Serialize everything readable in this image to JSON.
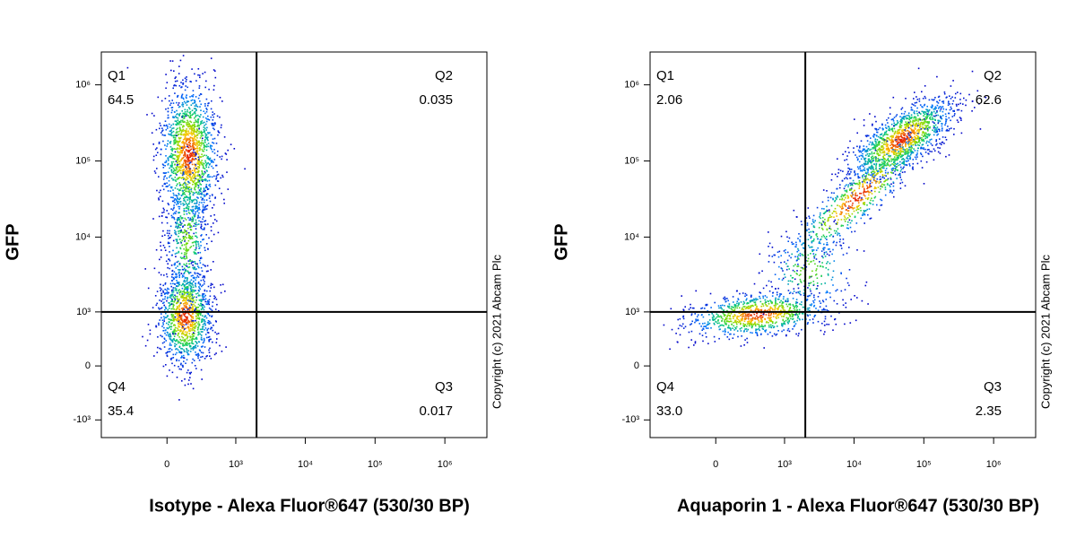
{
  "chart_data": [
    {
      "type": "flow-quadrant",
      "x_label": "Isotype - Alexa Fluor®647 (530/30 BP)",
      "y_label": "GFP",
      "annotation": "Copyright (c) 2021 Abcam Plc",
      "quadrants": [
        {
          "name": "Q1",
          "value": 64.5
        },
        {
          "name": "Q2",
          "value": 0.035
        },
        {
          "name": "Q3",
          "value": 0.017
        },
        {
          "name": "Q4",
          "value": 35.4
        }
      ],
      "x_gate": 2000,
      "y_gate": 1000,
      "xlim": [
        -900,
        4000000
      ],
      "ylim": [
        -1750,
        2700000
      ],
      "xticks": [
        0,
        {
          "value": 1000,
          "label": "10³"
        },
        {
          "value": 10000,
          "label": "10⁴"
        },
        {
          "value": 100000,
          "label": "10⁵"
        },
        {
          "value": 1000000,
          "label": "10⁶"
        }
      ],
      "yticks": [
        {
          "value": -1000,
          "label": "-10³"
        },
        0,
        {
          "value": 1000,
          "label": "10³"
        },
        {
          "value": 10000,
          "label": "10⁴"
        },
        {
          "value": 100000,
          "label": "10⁵"
        },
        {
          "value": 1000000,
          "label": "10⁶"
        }
      ]
    },
    {
      "type": "flow-quadrant",
      "x_label": "Aquaporin 1 - Alexa Fluor®647 (530/30 BP)",
      "y_label": "GFP",
      "annotation": "Copyright (c) 2021 Abcam Plc",
      "quadrants": [
        {
          "name": "Q1",
          "value": 2.06
        },
        {
          "name": "Q2",
          "value": 62.6
        },
        {
          "name": "Q3",
          "value": 2.35
        },
        {
          "name": "Q4",
          "value": 33.0,
          "value_label": "33.0"
        }
      ],
      "x_gate": 2000,
      "y_gate": 1000,
      "xlim": [
        -900,
        4000000
      ],
      "ylim": [
        -1750,
        2700000
      ],
      "xticks": [
        0,
        {
          "value": 1000,
          "label": "10³"
        },
        {
          "value": 10000,
          "label": "10⁴"
        },
        {
          "value": 100000,
          "label": "10⁵"
        },
        {
          "value": 1000000,
          "label": "10⁶"
        }
      ],
      "yticks": [
        {
          "value": -1000,
          "label": "-10³"
        },
        0,
        {
          "value": 1000,
          "label": "10³"
        },
        {
          "value": 10000,
          "label": "10⁴"
        },
        {
          "value": 100000,
          "label": "10⁵"
        },
        {
          "value": 1000000,
          "label": "10⁶"
        }
      ]
    }
  ]
}
